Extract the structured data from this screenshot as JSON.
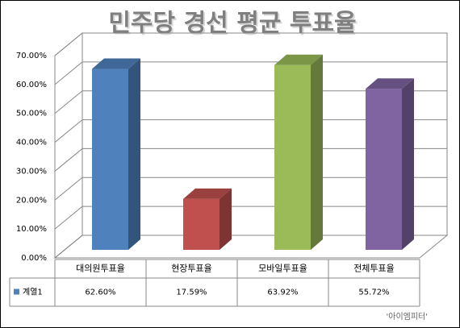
{
  "chart_data": {
    "type": "bar3d",
    "title": "민주당 경선 평균 투표율",
    "categories": [
      "대의원투표율",
      "현장투표율",
      "모바일투표율",
      "전체투표율"
    ],
    "series": [
      {
        "name": "계열1",
        "color": "#4f81bd",
        "colors": [
          "#4f81bd",
          "#c0504d",
          "#9bbb59",
          "#8064a2"
        ],
        "values": [
          62.6,
          17.59,
          63.92,
          55.72
        ],
        "value_labels": [
          "62.60%",
          "17.59%",
          "63.92%",
          "55.72%"
        ]
      }
    ],
    "ylim": [
      0,
      70
    ],
    "yticks": [
      {
        "value": 0,
        "label": "0.00%"
      },
      {
        "value": 10,
        "label": "10.00%"
      },
      {
        "value": 20,
        "label": "20.00%"
      },
      {
        "value": 30,
        "label": "30.00%"
      },
      {
        "value": 40,
        "label": "40.00%"
      },
      {
        "value": 50,
        "label": "50.00%"
      },
      {
        "value": 60,
        "label": "60.00%"
      },
      {
        "value": 70,
        "label": "70.00%"
      }
    ],
    "grid": true,
    "annotation": "'아이엠피터'"
  }
}
